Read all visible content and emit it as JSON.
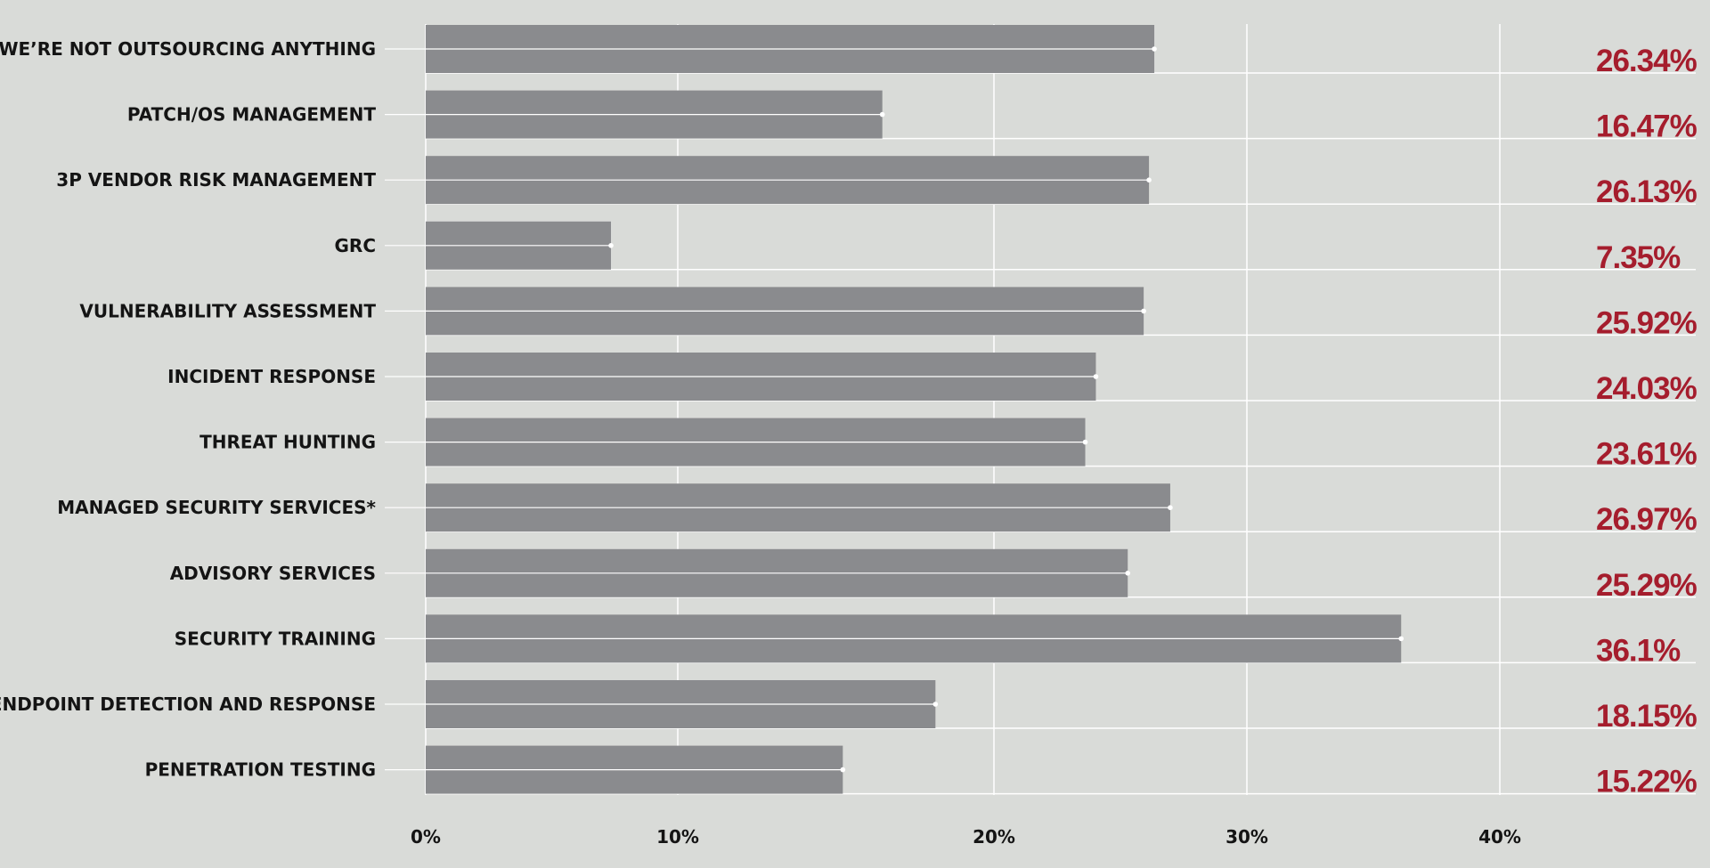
{
  "colors": {
    "background": "#d9dbd8",
    "bar": "#8a8b8e",
    "grid": "#ffffff",
    "value_text": "#a51d2d",
    "label_text": "#141414"
  },
  "chart_data": {
    "type": "bar",
    "orientation": "horizontal",
    "title": "",
    "xlabel": "",
    "ylabel": "",
    "xlim": [
      0,
      50
    ],
    "grid": true,
    "legend": "none",
    "categories": [
      "WE’RE NOT OUTSOURCING ANYTHING",
      "PATCH/OS MANAGEMENT",
      "3P VENDOR RISK MANAGEMENT",
      "GRC",
      "VULNERABILITY ASSESSMENT",
      "INCIDENT RESPONSE",
      "THREAT HUNTING",
      "MANAGED SECURITY SERVICES*",
      "ADVISORY SERVICES",
      "SECURITY TRAINING",
      "ENDPOINT DETECTION AND RESPONSE",
      "PENETRATION TESTING"
    ],
    "values": [
      26.34,
      16.47,
      26.13,
      7.35,
      25.92,
      24.03,
      23.61,
      26.97,
      25.29,
      36.1,
      18.15,
      15.22
    ],
    "value_labels": [
      "26.34%",
      "16.47%",
      "26.13%",
      "7.35%",
      "25.92%",
      "24.03%",
      "23.61%",
      "26.97%",
      "25.29%",
      "36.1%",
      "18.15%",
      "15.22%"
    ],
    "x_ticks": [
      {
        "value": 0,
        "label": "0%"
      },
      {
        "value": 10,
        "label": "10%"
      },
      {
        "value": 20,
        "label": "20%"
      },
      {
        "value": 30,
        "label": "30%"
      },
      {
        "value": 40,
        "label": "40%"
      }
    ]
  }
}
